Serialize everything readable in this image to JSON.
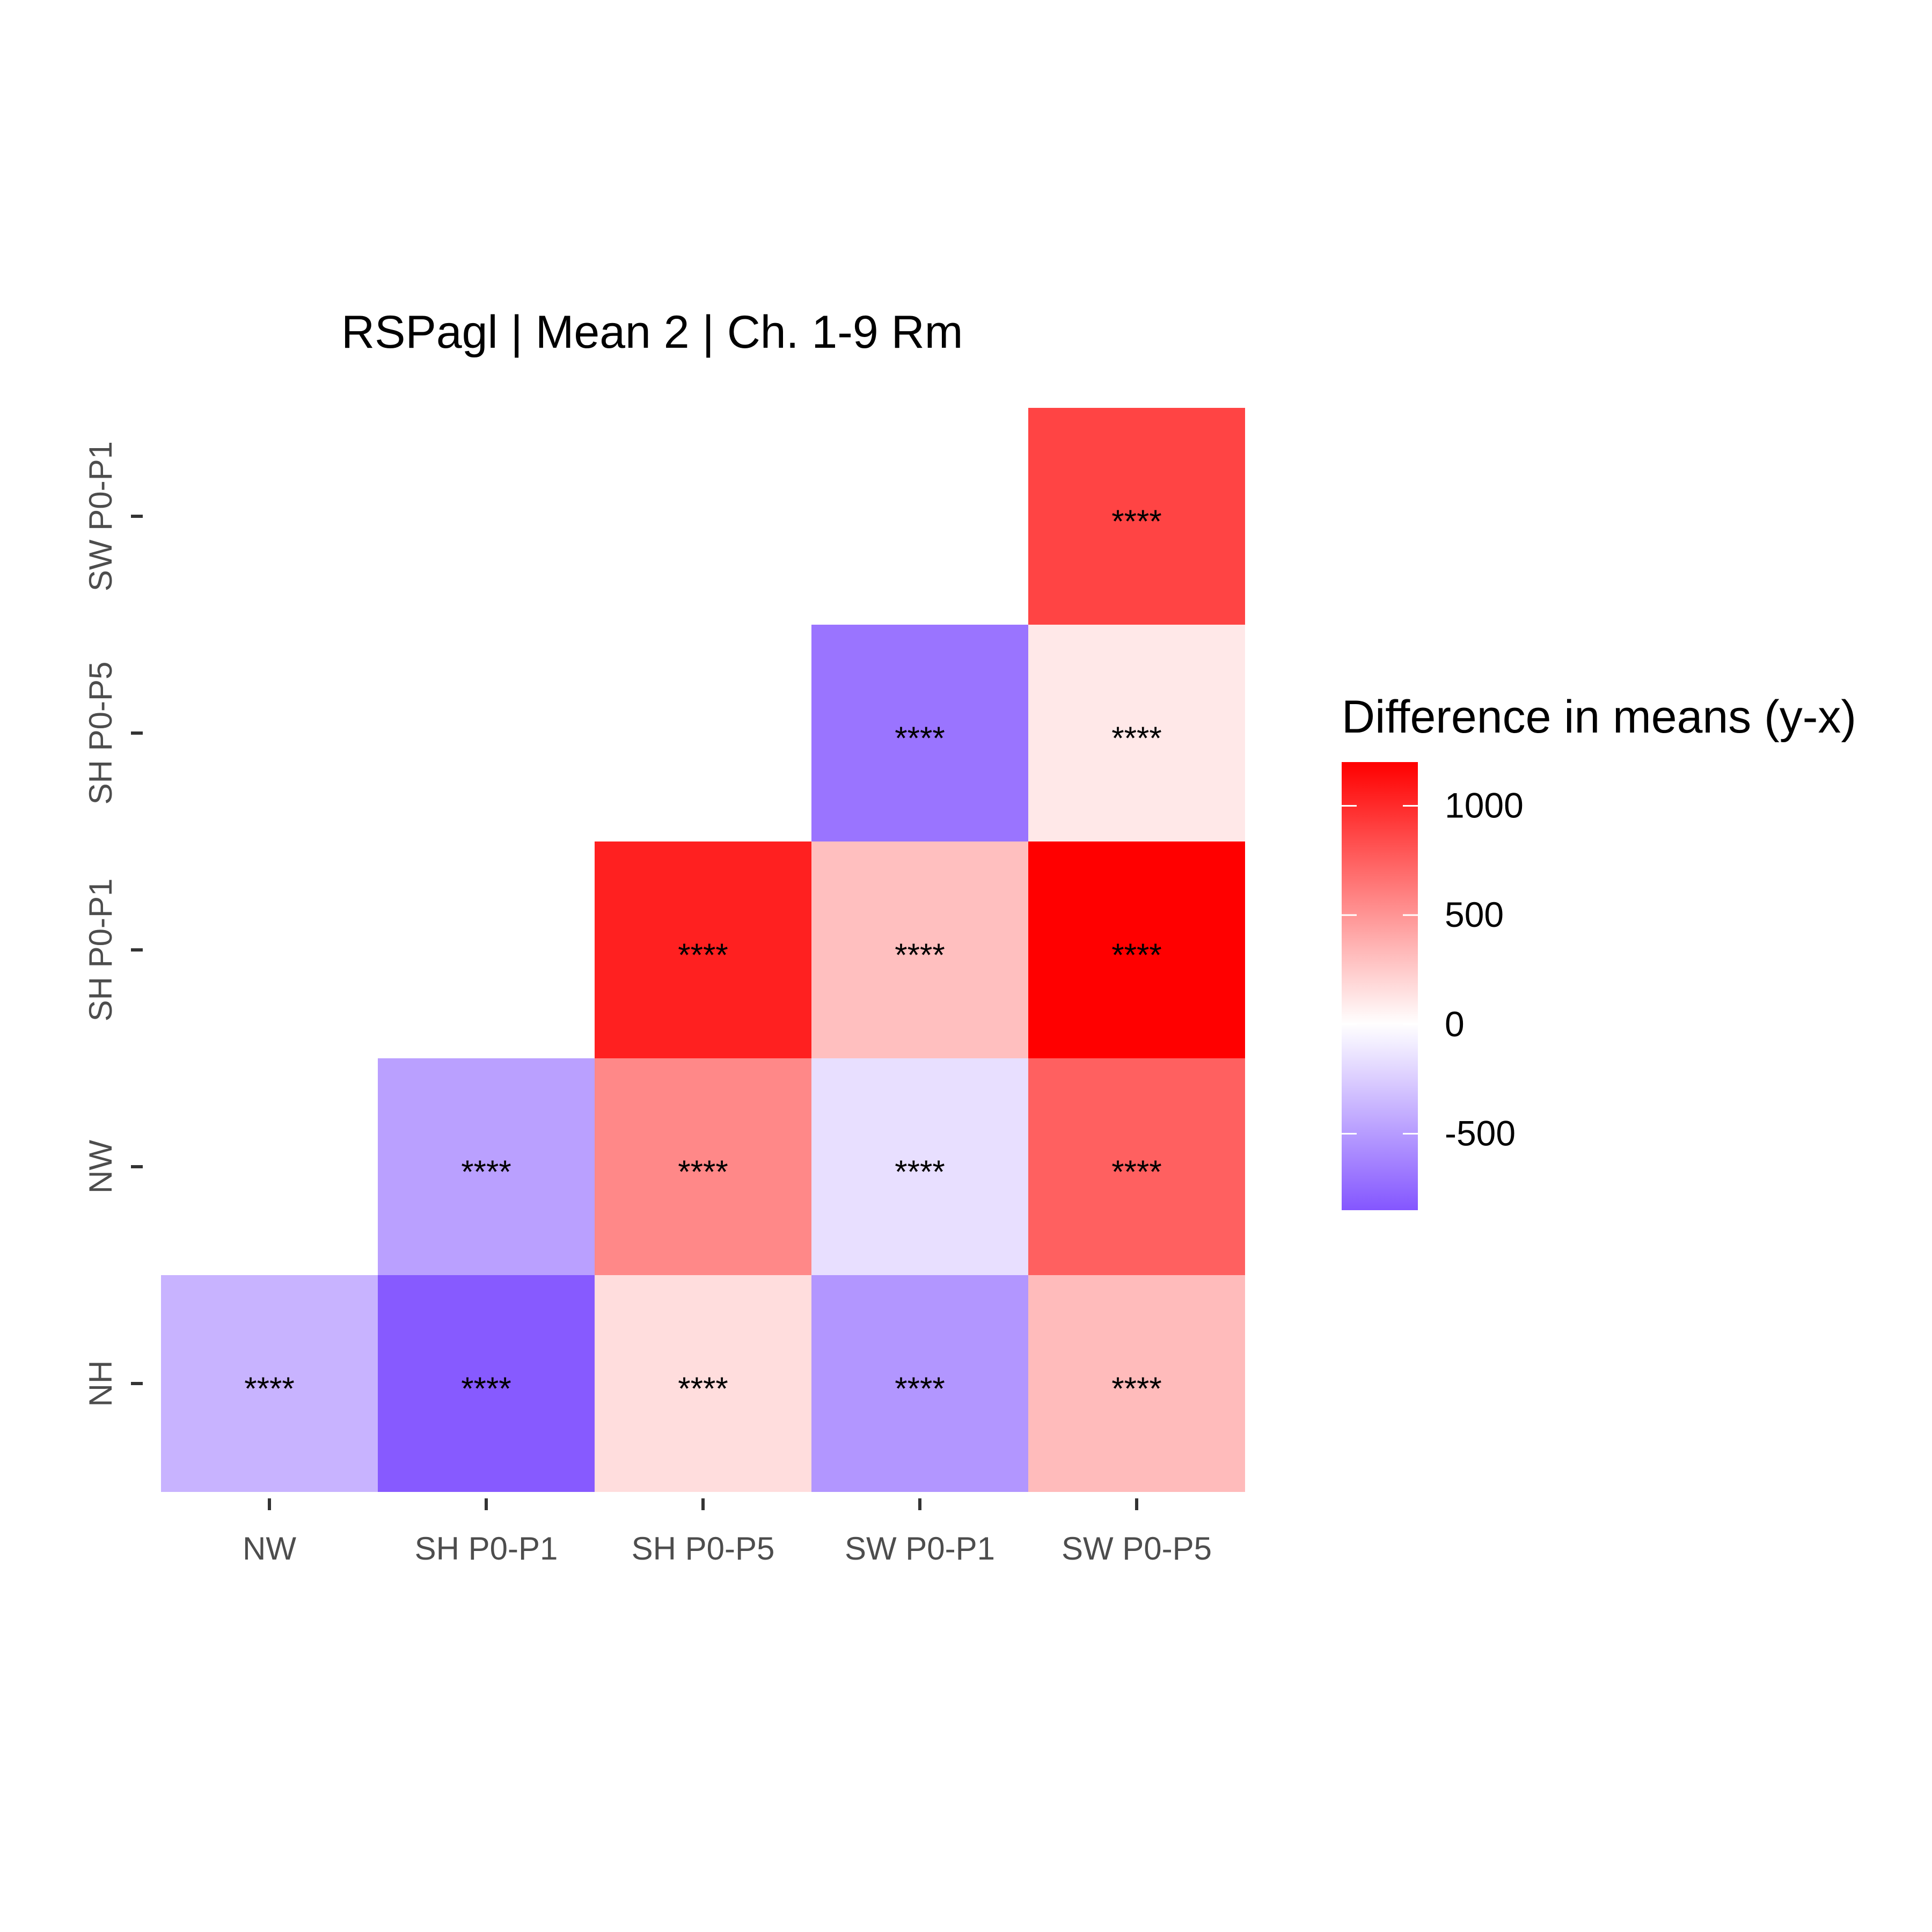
{
  "chart_data": {
    "type": "heatmap",
    "title": "RSPagl | Mean 2 | Ch. 1-9 Rm",
    "x_categories": [
      "NW",
      "SH P0-P1",
      "SH P0-P5",
      "SW P0-P1",
      "SW P0-P5"
    ],
    "y_categories": [
      "NH",
      "NW",
      "SH P0-P1",
      "SH P0-P5",
      "SW P0-P1"
    ],
    "cells": [
      {
        "x": "NW",
        "y": "NH",
        "value": -380,
        "label": "****"
      },
      {
        "x": "SH P0-P1",
        "y": "NH",
        "value": -830,
        "label": "****"
      },
      {
        "x": "SH P0-P5",
        "y": "NH",
        "value": 160,
        "label": "****"
      },
      {
        "x": "SW P0-P1",
        "y": "NH",
        "value": -530,
        "label": "****"
      },
      {
        "x": "SW P0-P5",
        "y": "NH",
        "value": 320,
        "label": "****"
      },
      {
        "x": "SH P0-P1",
        "y": "NW",
        "value": -480,
        "label": "****"
      },
      {
        "x": "SH P0-P5",
        "y": "NW",
        "value": 560,
        "label": "****"
      },
      {
        "x": "SW P0-P1",
        "y": "NW",
        "value": -160,
        "label": "****"
      },
      {
        "x": "SW P0-P5",
        "y": "NW",
        "value": 750,
        "label": "****"
      },
      {
        "x": "SH P0-P5",
        "y": "SH P0-P1",
        "value": 1050,
        "label": "****"
      },
      {
        "x": "SW P0-P1",
        "y": "SH P0-P1",
        "value": 300,
        "label": "****"
      },
      {
        "x": "SW P0-P5",
        "y": "SH P0-P1",
        "value": 1200,
        "label": "****"
      },
      {
        "x": "SW P0-P1",
        "y": "SH P0-P5",
        "value": -700,
        "label": "****"
      },
      {
        "x": "SW P0-P5",
        "y": "SH P0-P5",
        "value": 110,
        "label": "****"
      },
      {
        "x": "SW P0-P5",
        "y": "SW P0-P1",
        "value": 880,
        "label": "****"
      }
    ],
    "legend": {
      "title": "Difference in means (y-x)",
      "position": "right",
      "range": [
        -850,
        1200
      ],
      "ticks": [
        1000,
        500,
        0,
        -500
      ]
    },
    "colors": {
      "low": "#8456ff",
      "mid": "#ffffff",
      "high": "#ff0000"
    },
    "grid": false
  }
}
